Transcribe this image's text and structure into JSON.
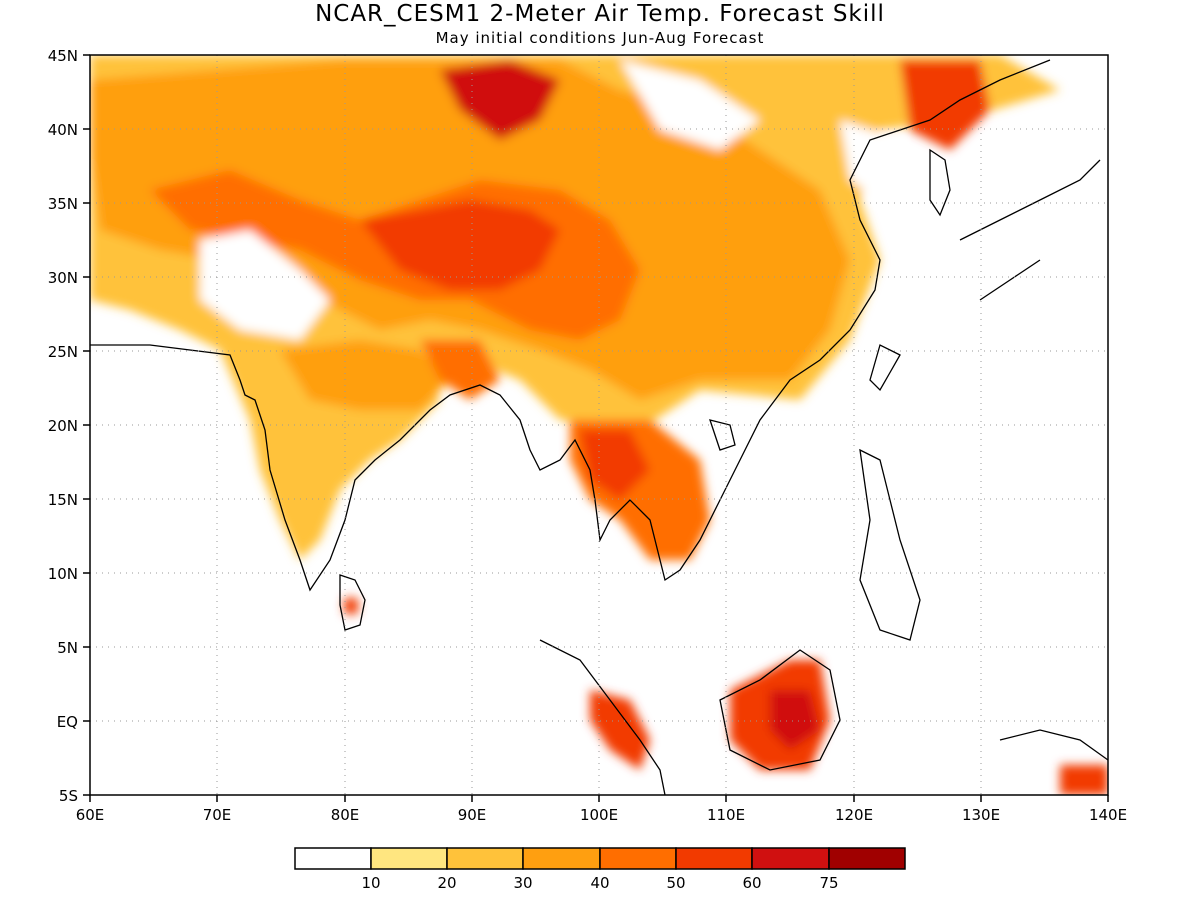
{
  "title": "NCAR_CESM1 2-Meter Air Temp. Forecast Skill",
  "subtitle": "May initial conditions  Jun-Aug Forecast",
  "lon_labels": [
    "60E",
    "70E",
    "80E",
    "90E",
    "100E",
    "110E",
    "120E",
    "130E",
    "140E"
  ],
  "lat_labels": [
    "45N",
    "40N",
    "35N",
    "30N",
    "25N",
    "20N",
    "15N",
    "10N",
    "5N",
    "EQ",
    "5S"
  ],
  "colorbar": {
    "labels": [
      "10",
      "20",
      "30",
      "40",
      "50",
      "60",
      "75"
    ],
    "colors": [
      "#ffffff",
      "#ffe680",
      "#ffc23a",
      "#ff9f10",
      "#ff6e00",
      "#f23a00",
      "#d01010",
      "#a00000"
    ]
  },
  "map": {
    "lon_range": [
      60,
      140
    ],
    "lat_range": [
      -5,
      45
    ],
    "grid": true,
    "type": "filled-contour"
  }
}
